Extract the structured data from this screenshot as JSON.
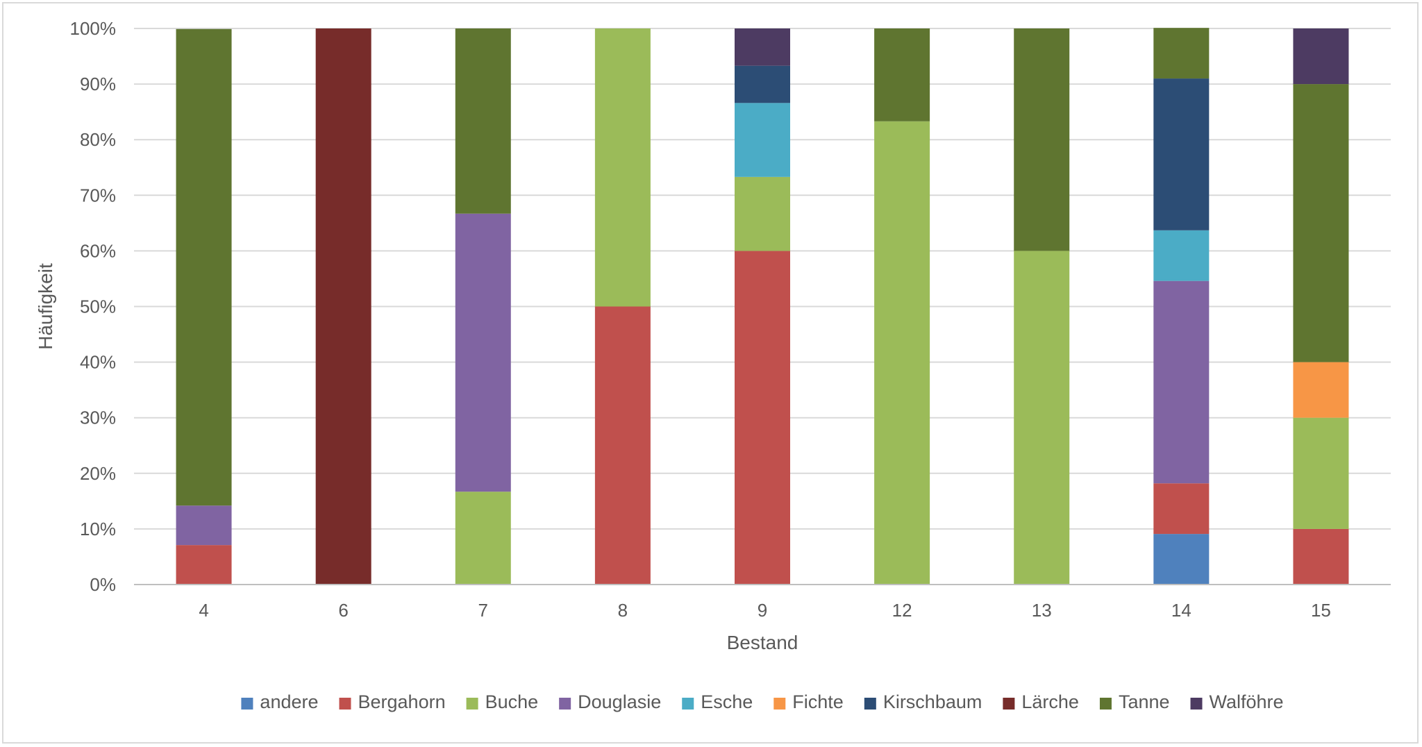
{
  "chart_data": {
    "type": "bar",
    "stacked": true,
    "percent_stacked": true,
    "title": "",
    "xlabel": "Bestand",
    "ylabel": "Häufigkeit",
    "ylim": [
      0,
      100
    ],
    "y_ticks": [
      "0%",
      "10%",
      "20%",
      "30%",
      "40%",
      "50%",
      "60%",
      "70%",
      "80%",
      "90%",
      "100%"
    ],
    "grid": "horizontal",
    "legend_position": "bottom",
    "categories": [
      "4",
      "6",
      "7",
      "8",
      "9",
      "12",
      "13",
      "14",
      "15"
    ],
    "series": [
      {
        "name": "andere",
        "color": "#4F81BD",
        "values": [
          0,
          0,
          0,
          0,
          0,
          0,
          0,
          9.1,
          0
        ]
      },
      {
        "name": "Bergahorn",
        "color": "#C0504D",
        "values": [
          7.1,
          0,
          0,
          50,
          60,
          0,
          0,
          9.1,
          10
        ]
      },
      {
        "name": "Buche",
        "color": "#9BBB59",
        "values": [
          0,
          0,
          16.7,
          50,
          13.3,
          83.3,
          60,
          0,
          20
        ]
      },
      {
        "name": "Douglasie",
        "color": "#8064A2",
        "values": [
          7.1,
          0,
          50,
          0,
          0,
          0,
          0,
          36.4,
          0
        ]
      },
      {
        "name": "Esche",
        "color": "#4BACC6",
        "values": [
          0,
          0,
          0,
          0,
          13.3,
          0,
          0,
          9.1,
          0
        ]
      },
      {
        "name": "Fichte",
        "color": "#F79646",
        "values": [
          0,
          0,
          0,
          0,
          0,
          0,
          0,
          0,
          10
        ]
      },
      {
        "name": "Kirschbaum",
        "color": "#2C4D75",
        "values": [
          0,
          0,
          0,
          0,
          6.7,
          0,
          0,
          27.3,
          0
        ]
      },
      {
        "name": "Lärche",
        "color": "#772C2A",
        "values": [
          0,
          100,
          0,
          0,
          0,
          0,
          0,
          0,
          0
        ]
      },
      {
        "name": "Tanne",
        "color": "#5F7530",
        "values": [
          85.7,
          0,
          33.3,
          0,
          0,
          16.7,
          40,
          9.1,
          50
        ]
      },
      {
        "name": "Walföhre",
        "color": "#4D3B62",
        "values": [
          0,
          0,
          0,
          0,
          6.7,
          0,
          0,
          0,
          10
        ]
      }
    ]
  }
}
